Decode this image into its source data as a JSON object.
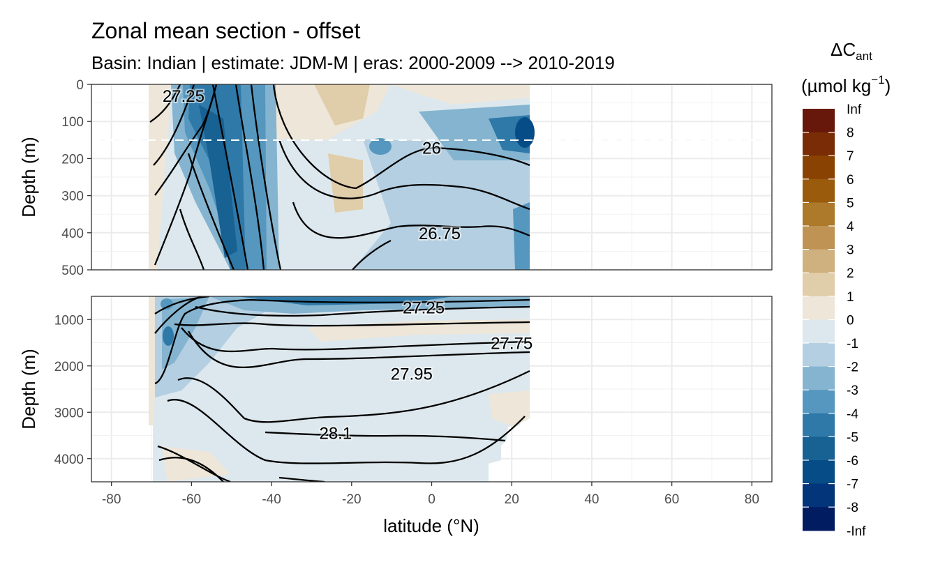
{
  "chart_data": {
    "type": "filled-contour-section",
    "title": "Zonal mean section - offset",
    "subtitle": "Basin: Indian | estimate: JDM-M | eras: 2000-2009 --> 2010-2019",
    "xlabel": "latitude (°N)",
    "x_ticks": [
      -80,
      -60,
      -40,
      -20,
      0,
      20,
      40,
      60,
      80
    ],
    "xlim": [
      -85,
      85
    ],
    "data_extent_lat": [
      -70,
      24.5
    ],
    "panels": [
      {
        "name": "upper",
        "ylabel": "Depth (m)",
        "y_ticks": [
          0,
          100,
          200,
          300,
          400,
          500
        ],
        "ylim": [
          0,
          500
        ],
        "reference_line_depth": 150,
        "isopycnal_labels": [
          {
            "text": "27.25",
            "lat": -62,
            "depth": 30
          },
          {
            "text": "26",
            "lat": 0,
            "depth": 170
          },
          {
            "text": "26.75",
            "lat": 2,
            "depth": 400
          }
        ]
      },
      {
        "name": "lower",
        "ylabel": "Depth (m)",
        "y_ticks": [
          1000,
          2000,
          3000,
          4000
        ],
        "ylim": [
          500,
          4500
        ],
        "isopycnal_labels": [
          {
            "text": "27.25",
            "lat": -2,
            "depth": 730
          },
          {
            "text": "27.75",
            "lat": 20,
            "depth": 1500
          },
          {
            "text": "27.95",
            "lat": -5,
            "depth": 2160
          },
          {
            "text": "28.1",
            "lat": -24,
            "depth": 3440
          }
        ]
      }
    ],
    "legend": {
      "title_main": "ΔC",
      "title_sub": "ant",
      "unit_main": "(µmol kg",
      "unit_sup": "−1",
      "unit_close": ")",
      "labels": [
        "Inf",
        "8",
        "7",
        "6",
        "5",
        "4",
        "3",
        "2",
        "1",
        "0",
        "-1",
        "-2",
        "-3",
        "-4",
        "-5",
        "-6",
        "-7",
        "-8",
        "-Inf"
      ],
      "colors": [
        "#67180a",
        "#792c06",
        "#8a4203",
        "#9b5b0d",
        "#ad792a",
        "#bf9353",
        "#cfb07f",
        "#e0cda9",
        "#ede6d9",
        "#dde8ee",
        "#b4cfe1",
        "#85b4d0",
        "#5597be",
        "#2f79a8",
        "#176193",
        "#064c86",
        "#02357a",
        "#021c61"
      ]
    }
  }
}
